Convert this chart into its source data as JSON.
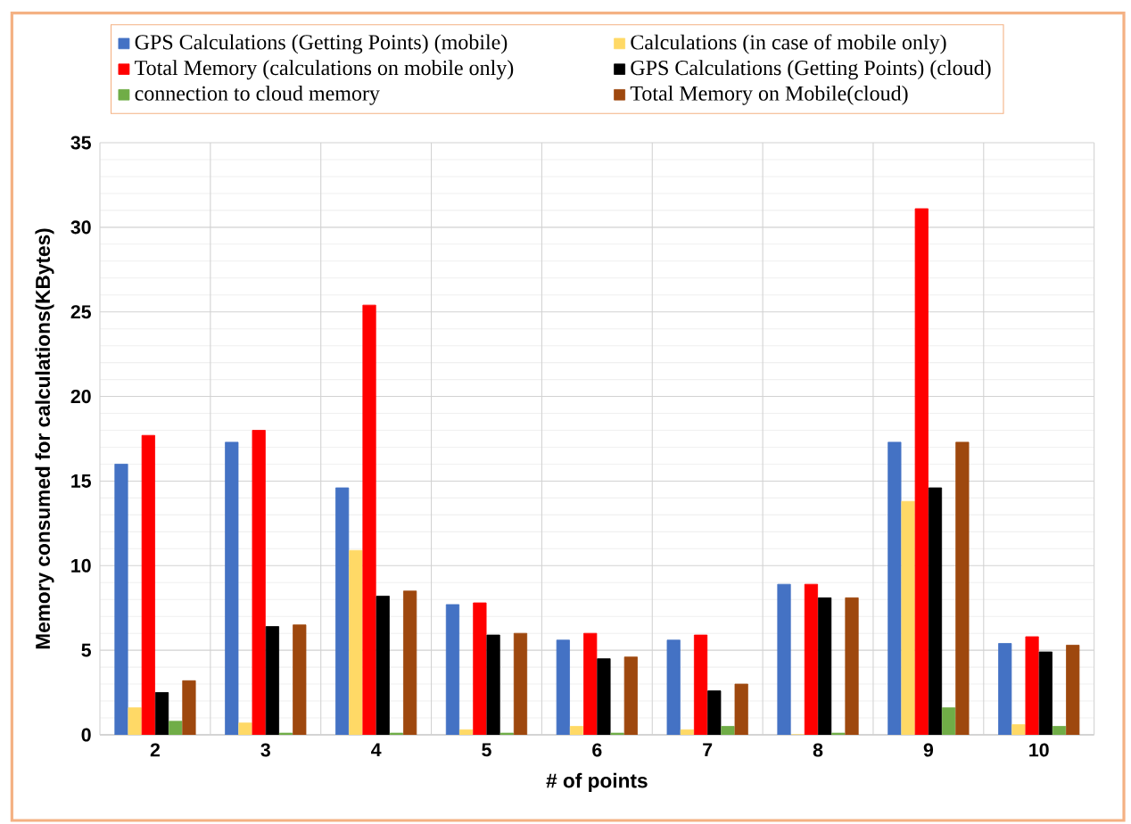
{
  "chart_data": {
    "type": "bar",
    "xlabel": "# of points",
    "ylabel": "Memory consumed for calculations(KBytes)",
    "categories": [
      "2",
      "3",
      "4",
      "5",
      "6",
      "7",
      "8",
      "9",
      "10"
    ],
    "series": [
      {
        "name": "GPS Calculations (Getting Points) (mobile)",
        "color": "#4472c4",
        "values": [
          16,
          17.3,
          14.6,
          7.7,
          5.6,
          5.6,
          8.9,
          17.3,
          5.4
        ]
      },
      {
        "name": "Calculations (in case of mobile only)",
        "color": "#ffd966",
        "values": [
          1.6,
          0.7,
          10.9,
          0.3,
          0.5,
          0.3,
          0,
          13.8,
          0.6
        ]
      },
      {
        "name": "Total Memory (calculations on mobile only)",
        "color": "#ff0000",
        "values": [
          17.7,
          18,
          25.4,
          7.8,
          6,
          5.9,
          8.9,
          31.1,
          5.8
        ]
      },
      {
        "name": "GPS Calculations (Getting Points) (cloud)",
        "color": "#000000",
        "values": [
          2.5,
          6.4,
          8.2,
          5.9,
          4.5,
          2.6,
          8.1,
          14.6,
          4.9
        ]
      },
      {
        "name": "connection to cloud memory",
        "color": "#70ad47",
        "values": [
          0.8,
          0.1,
          0.1,
          0.1,
          0.1,
          0.5,
          0.1,
          1.6,
          0.5
        ]
      },
      {
        "name": "Total Memory on Mobile(cloud)",
        "color": "#9e480e",
        "values": [
          3.2,
          6.5,
          8.5,
          6,
          4.6,
          3,
          8.1,
          17.3,
          5.3
        ]
      }
    ],
    "ylim": [
      0,
      35
    ],
    "yticks": [
      0,
      5,
      10,
      15,
      20,
      25,
      30,
      35
    ],
    "grid": true,
    "legend": "top"
  }
}
